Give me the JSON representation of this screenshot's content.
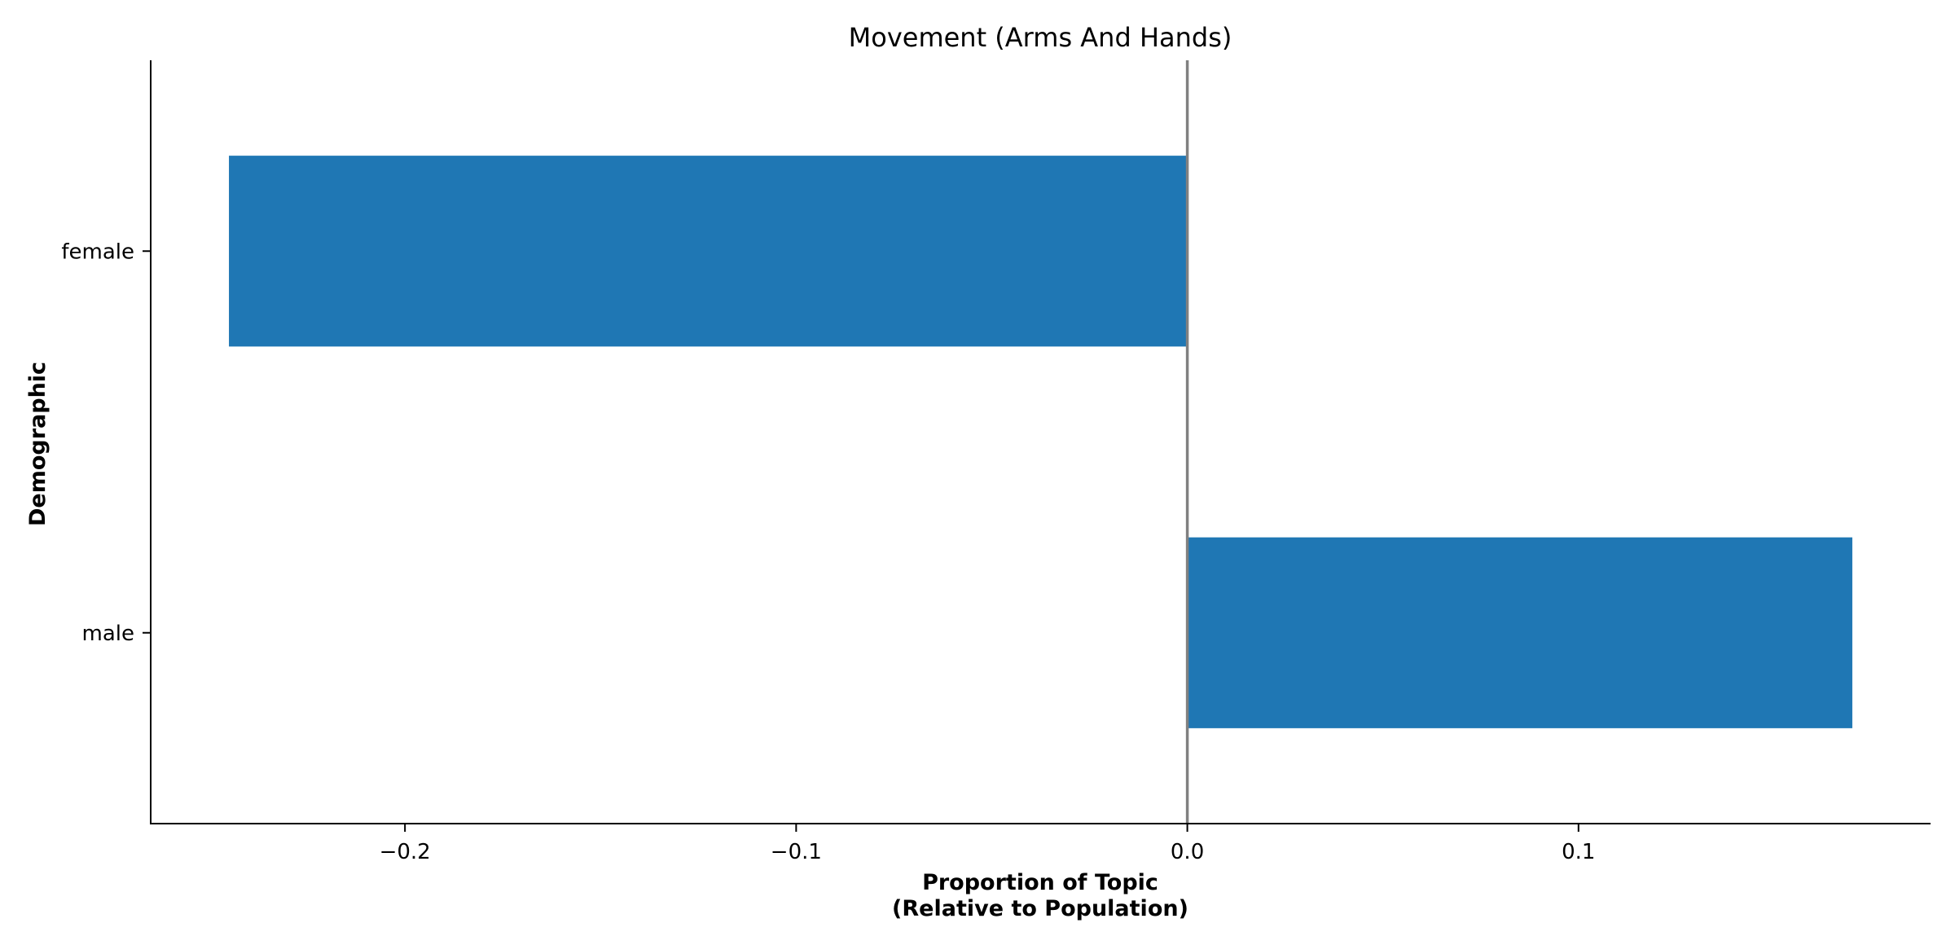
{
  "chart_data": {
    "type": "bar",
    "orientation": "horizontal",
    "title": "Movement (Arms And Hands)",
    "xlabel": [
      "Proportion of Topic",
      "(Relative to Population)"
    ],
    "ylabel": "Demographic",
    "categories": [
      "female",
      "male"
    ],
    "values": [
      -0.245,
      0.17
    ],
    "xlim": [
      -0.265,
      0.19
    ],
    "xticks": [
      -0.2,
      -0.1,
      0.0,
      0.1
    ],
    "xtick_labels": [
      "−0.2",
      "−0.1",
      "0.0",
      "0.1"
    ],
    "reference_line_x": 0.0,
    "bar_color": "#1f77b4",
    "reference_line_color": "#808080",
    "grid": false,
    "legend": "none"
  }
}
